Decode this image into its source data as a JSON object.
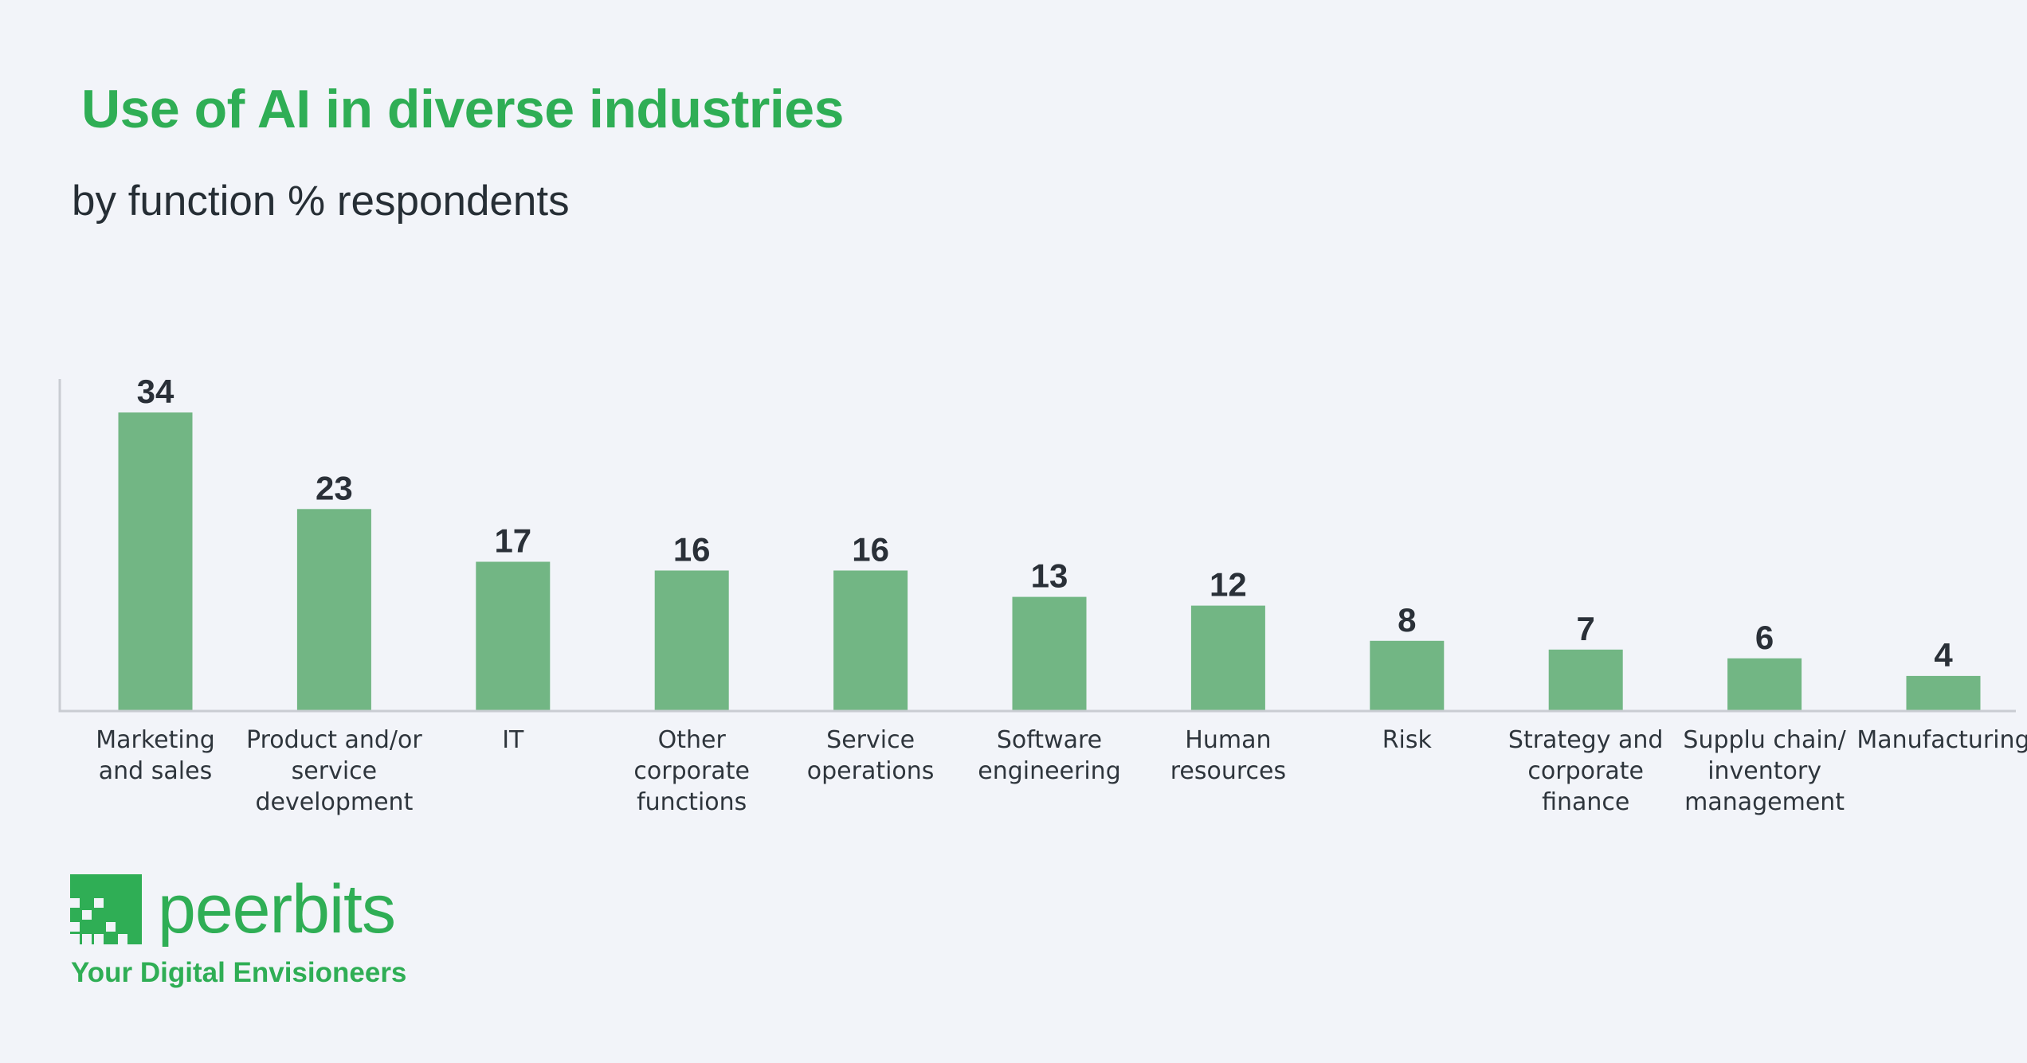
{
  "header": {
    "title": "Use of AI in diverse industries",
    "subtitle": "by function % respondents"
  },
  "brand": {
    "name": "peerbits",
    "tagline": "Your Digital Envisioneers",
    "color": "#2fae55"
  },
  "chart_data": {
    "type": "bar",
    "title": "Use of AI in diverse industries",
    "subtitle": "by function % respondents",
    "xlabel": "",
    "ylabel": "",
    "ylim": [
      0,
      35
    ],
    "grid": false,
    "bar_color": "#72b684",
    "categories": [
      [
        "Marketing",
        "and sales"
      ],
      [
        "Product and/or",
        "service",
        "development"
      ],
      [
        "IT"
      ],
      [
        "Other",
        "corporate",
        "functions"
      ],
      [
        "Service",
        "operations"
      ],
      [
        "Software",
        "engineering"
      ],
      [
        "Human",
        "resources"
      ],
      [
        "Risk"
      ],
      [
        "Strategy and",
        "corporate",
        "finance"
      ],
      [
        "Supplu chain/",
        "inventory",
        "management"
      ],
      [
        "Manufacturing"
      ]
    ],
    "values": [
      34,
      23,
      17,
      16,
      16,
      13,
      12,
      8,
      7,
      6,
      4
    ]
  }
}
